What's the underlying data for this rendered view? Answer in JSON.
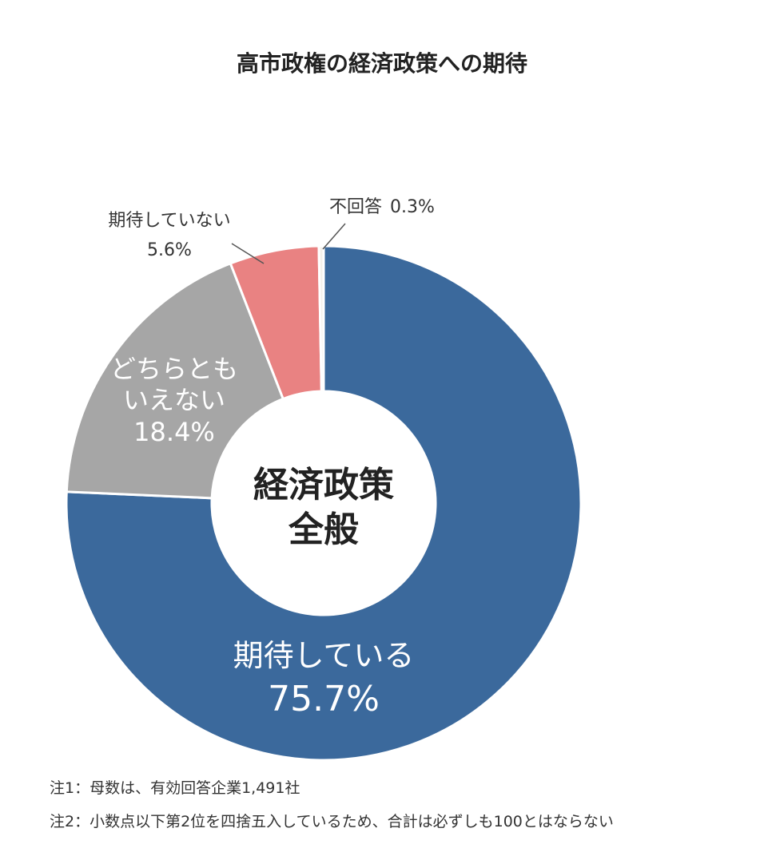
{
  "chart_data": {
    "type": "pie",
    "variant": "donut",
    "title": "高市政権の経済政策への期待",
    "center_label": [
      "経済政策",
      "全般"
    ],
    "start": "top",
    "direction": "clockwise",
    "slices": [
      {
        "label": "期待している",
        "value": 75.7,
        "value_label": "75.7%",
        "color": "#3b699c",
        "label_color": "#ffffff",
        "label_position": "inside"
      },
      {
        "label": "どちらとも\nいえない",
        "label_lines": [
          "どちらとも",
          "いえない"
        ],
        "value": 18.4,
        "value_label": "18.4%",
        "color": "#a6a6a6",
        "label_color": "#ffffff",
        "label_position": "inside"
      },
      {
        "label": "期待していない",
        "value": 5.6,
        "value_label": "5.6%",
        "color": "#e98282",
        "label_color": "#333333",
        "label_position": "outside"
      },
      {
        "label": "不回答",
        "value": 0.3,
        "value_label": "0.3%",
        "color": "#f4f1ea",
        "label_color": "#333333",
        "label_position": "outside"
      }
    ]
  },
  "notes": [
    "注1：母数は、有効回答企業1,491社",
    "注2：小数点以下第2位を四捨五入しているため、合計は必ずしも100とはならない"
  ]
}
